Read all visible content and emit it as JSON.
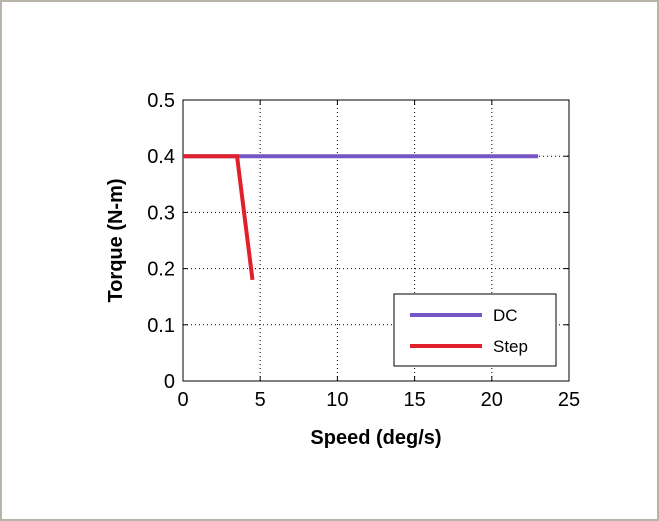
{
  "chart_data": {
    "type": "line",
    "title": "",
    "xlabel": "Speed (deg/s)",
    "ylabel": "Torque (N-m)",
    "xlim": [
      0,
      25
    ],
    "ylim": [
      0,
      0.5
    ],
    "xticks": [
      "0",
      "5",
      "10",
      "15",
      "20",
      "25"
    ],
    "yticks": [
      "0",
      "0.1",
      "0.2",
      "0.3",
      "0.4",
      "0.5"
    ],
    "grid": true,
    "legend_position": "bottom-right",
    "series": [
      {
        "name": "DC",
        "color": "#7755c4",
        "x": [
          0,
          23
        ],
        "y": [
          0.4,
          0.4
        ]
      },
      {
        "name": "Step",
        "color": "#e0202a",
        "x": [
          0,
          3.5,
          4.5
        ],
        "y": [
          0.4,
          0.4,
          0.18
        ]
      }
    ]
  }
}
